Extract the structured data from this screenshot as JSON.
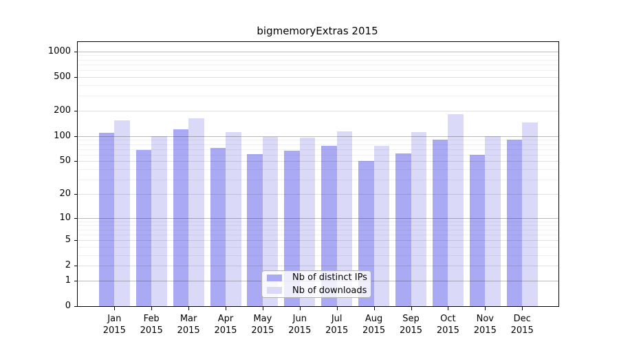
{
  "title": "bigmemoryExtras 2015",
  "colors": {
    "ips_bar": "#a9a9f4",
    "downloads_bar": "#dadaf8",
    "axis": "#000000",
    "legend_border": "#b0b0b0",
    "background": "#ffffff"
  },
  "legend": {
    "items": [
      {
        "label": "Nb of distinct IPs",
        "color_key": "ips_bar"
      },
      {
        "label": "Nb of downloads",
        "color_key": "downloads_bar"
      }
    ]
  },
  "chart_data": {
    "type": "bar",
    "title": "bigmemoryExtras 2015",
    "categories": [
      "Jan 2015",
      "Feb 2015",
      "Mar 2015",
      "Apr 2015",
      "May 2015",
      "Jun 2015",
      "Jul 2015",
      "Aug 2015",
      "Sep 2015",
      "Oct 2015",
      "Nov 2015",
      "Dec 2015"
    ],
    "series": [
      {
        "name": "Nb of distinct IPs",
        "values": [
          109,
          68,
          119,
          72,
          61,
          67,
          77,
          50,
          62,
          90,
          60,
          90
        ]
      },
      {
        "name": "Nb of downloads",
        "values": [
          153,
          100,
          161,
          112,
          98,
          95,
          114,
          76,
          112,
          183,
          100,
          145
        ]
      }
    ],
    "xlabel": "",
    "ylabel": "",
    "y_scale": "log10(1+value)",
    "y_ticks": [
      0,
      1,
      2,
      5,
      10,
      20,
      50,
      100,
      200,
      500,
      1000
    ],
    "ylim": [
      0,
      1250
    ],
    "grid": "horizontal log minor and major gridlines drawn above bars",
    "legend_position": "inside bottom-center"
  }
}
